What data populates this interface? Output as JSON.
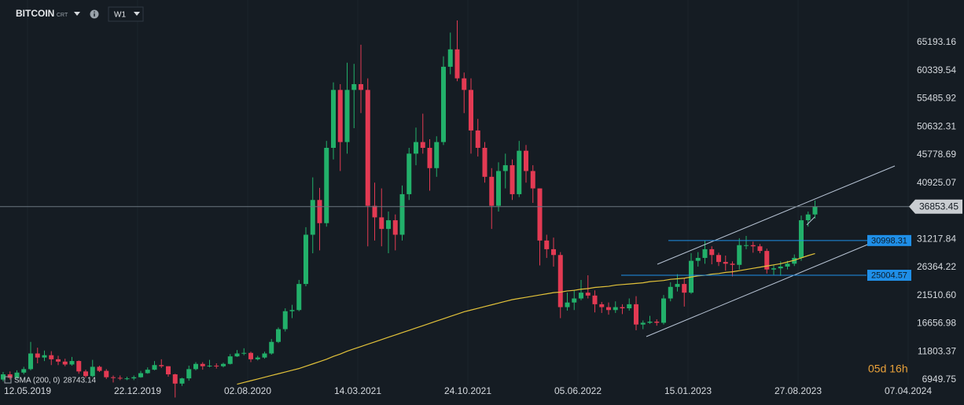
{
  "header": {
    "symbol": "BITCOIN",
    "suffix": "CRT",
    "timeframe": "W1"
  },
  "timer": "05d 16h",
  "chart_data": {
    "type": "candlestick",
    "up_color": "#22b06a",
    "down_color": "#e33a53",
    "ylim": [
      6000,
      72524
    ],
    "yticks": [
      6949.75,
      11803.37,
      16656.98,
      {
        "value": 21510.6,
        "label": "21510.60"
      },
      26364.22,
      31217.84,
      40925.07,
      45778.69,
      50632.31,
      55485.92,
      60339.54,
      65193.16
    ],
    "x_labels": [
      "12.05.2019",
      "22.12.2019",
      "02.08.2020",
      "14.03.2021",
      "24.10.2021",
      "05.06.2022",
      "15.01.2023",
      "27.08.2023",
      "07.04.2024"
    ],
    "open": [
      7000,
      7900,
      7300,
      8200,
      8800,
      11500,
      10800,
      11200,
      10500,
      10100,
      9600,
      10200,
      8400,
      7600,
      9200,
      8500,
      7400,
      7300,
      7200,
      7200,
      7400,
      8100,
      8700,
      9500,
      9300,
      7900,
      6300,
      7200,
      8800,
      9700,
      9300,
      9400,
      9300,
      9700,
      11000,
      11500,
      11600,
      10500,
      10800,
      11500,
      13500,
      15700,
      18800,
      19000,
      23500,
      32000,
      38000,
      34000,
      47000,
      57000,
      48000,
      57000,
      58000,
      57000,
      37000,
      35000,
      33000,
      34500,
      32000,
      39000,
      46000,
      48000,
      47000,
      43500,
      48000,
      61000,
      64000,
      59000,
      57000,
      50000,
      47000,
      42000,
      37000,
      43000,
      44000,
      39000,
      46500,
      43000,
      40000,
      31000,
      29500,
      28500,
      19500,
      20300,
      21000,
      22000,
      21500,
      20000,
      19500,
      19000,
      19500,
      19300,
      20000,
      16500,
      16800,
      17000,
      16800,
      21000,
      23000,
      23500,
      22000,
      27500,
      28000,
      29500,
      28500,
      27300,
      27000,
      26800,
      30200,
      30200,
      30000,
      29200,
      26000,
      26200,
      26500,
      27000,
      28000,
      34500,
      35500
    ],
    "high": [
      8300,
      8400,
      8600,
      9200,
      13500,
      12500,
      12000,
      11900,
      11100,
      10600,
      10900,
      10300,
      8700,
      10400,
      9400,
      8800,
      7700,
      7700,
      7500,
      7700,
      8500,
      9100,
      10200,
      10500,
      9300,
      8000,
      7300,
      9400,
      10000,
      10000,
      10400,
      9800,
      9900,
      11400,
      12100,
      12400,
      11800,
      11100,
      11800,
      14000,
      16000,
      19300,
      19900,
      24200,
      33300,
      41900,
      40100,
      48200,
      58300,
      58000,
      61700,
      61500,
      64800,
      59000,
      41000,
      40000,
      36000,
      35500,
      40500,
      47000,
      50500,
      52900,
      48500,
      49000,
      62800,
      66900,
      69000,
      60000,
      59000,
      52000,
      48000,
      43500,
      44500,
      46000,
      45000,
      48200,
      47500,
      44000,
      40000,
      32000,
      31500,
      29000,
      22000,
      22500,
      24200,
      25000,
      22400,
      20400,
      20300,
      20500,
      20000,
      21000,
      21400,
      17200,
      18000,
      17400,
      21600,
      23800,
      25200,
      24500,
      28800,
      29000,
      31000,
      30000,
      28900,
      28400,
      27400,
      31400,
      31800,
      30800,
      30400,
      29600,
      26800,
      27400,
      27500,
      28600,
      35300,
      36000,
      37900
    ],
    "low": [
      6700,
      7000,
      7100,
      7900,
      8600,
      9800,
      10200,
      9500,
      9500,
      9300,
      9400,
      8000,
      7300,
      7400,
      8300,
      7100,
      6500,
      6900,
      6900,
      6900,
      7300,
      8000,
      8600,
      9000,
      7500,
      3900,
      5900,
      6800,
      8600,
      8700,
      9100,
      8900,
      9100,
      9600,
      10900,
      11200,
      10000,
      10300,
      10600,
      11300,
      13300,
      15300,
      17600,
      18800,
      23100,
      28800,
      29300,
      33400,
      45000,
      43000,
      46000,
      50400,
      53000,
      30000,
      31000,
      30000,
      28800,
      29300,
      31000,
      38000,
      44000,
      46000,
      39600,
      42000,
      47500,
      59700,
      58500,
      53000,
      46000,
      45500,
      41000,
      33000,
      36000,
      40000,
      38000,
      38500,
      41000,
      37500,
      26700,
      28000,
      26500,
      17600,
      18900,
      19000,
      20700,
      21000,
      18600,
      18500,
      18200,
      18500,
      18300,
      18900,
      15500,
      15700,
      16600,
      16300,
      16500,
      20500,
      22200,
      19600,
      21800,
      26500,
      27000,
      26900,
      26600,
      25800,
      24800,
      26000,
      29500,
      28900,
      28800,
      25300,
      25100,
      24900,
      26000,
      26600,
      27500,
      33400,
      34800
    ],
    "close": [
      7900,
      7300,
      8200,
      8800,
      11500,
      10800,
      11200,
      10500,
      10100,
      9600,
      10200,
      8400,
      7600,
      9200,
      8500,
      7400,
      7300,
      7200,
      7200,
      7400,
      8100,
      8700,
      9500,
      9300,
      7900,
      6300,
      7200,
      8800,
      9700,
      9300,
      9400,
      9300,
      9700,
      11000,
      11500,
      11600,
      10500,
      10800,
      11500,
      13500,
      15700,
      18800,
      19000,
      23500,
      32000,
      38000,
      34000,
      47000,
      57000,
      48000,
      57000,
      58000,
      57000,
      37000,
      35000,
      33000,
      34500,
      32000,
      39000,
      46000,
      48000,
      47000,
      43500,
      48000,
      61000,
      64000,
      59000,
      57000,
      50000,
      47000,
      42000,
      37000,
      43000,
      44000,
      39000,
      46500,
      43000,
      40000,
      31000,
      29500,
      28500,
      19500,
      20300,
      21000,
      22000,
      21500,
      20000,
      19500,
      19000,
      19500,
      19300,
      20000,
      16500,
      16800,
      17000,
      16800,
      21000,
      23000,
      23500,
      22000,
      27500,
      28000,
      29500,
      28500,
      27300,
      27000,
      26800,
      30200,
      30200,
      30000,
      29200,
      26000,
      26200,
      26500,
      27000,
      28000,
      34500,
      35500,
      36853.45
    ],
    "indicator": {
      "name": "SMA (200, 0)",
      "color": "#e2c23a",
      "values": [
        null,
        null,
        null,
        null,
        null,
        null,
        null,
        null,
        null,
        null,
        null,
        null,
        null,
        null,
        null,
        null,
        null,
        null,
        null,
        null,
        null,
        null,
        null,
        null,
        null,
        null,
        null,
        null,
        null,
        null,
        null,
        null,
        null,
        null,
        6200,
        6500,
        6800,
        7100,
        7400,
        7700,
        8000,
        8300,
        8600,
        8900,
        9300,
        9700,
        10100,
        10500,
        11000,
        11400,
        11900,
        12300,
        12700,
        13100,
        13500,
        13900,
        14300,
        14700,
        15100,
        15500,
        15900,
        16300,
        16700,
        17100,
        17500,
        17900,
        18300,
        18700,
        19000,
        19300,
        19600,
        19900,
        20200,
        20500,
        20800,
        21000,
        21200,
        21400,
        21600,
        21800,
        22000,
        22100,
        22300,
        22400,
        22600,
        22700,
        22900,
        23000,
        23100,
        23300,
        23400,
        23500,
        23600,
        23700,
        23900,
        24000,
        24100,
        24300,
        24400,
        24500,
        24700,
        24900,
        25000,
        25200,
        25300,
        25500,
        25600,
        25800,
        26000,
        26200,
        26400,
        26600,
        26800,
        27000,
        27300,
        27600,
        28000,
        28400,
        28743.14
      ]
    },
    "levels": [
      {
        "value": 30998.31,
        "color": "#1f8fe8"
      },
      {
        "value": 25004.57,
        "color": "#1f8fe8"
      }
    ]
  }
}
